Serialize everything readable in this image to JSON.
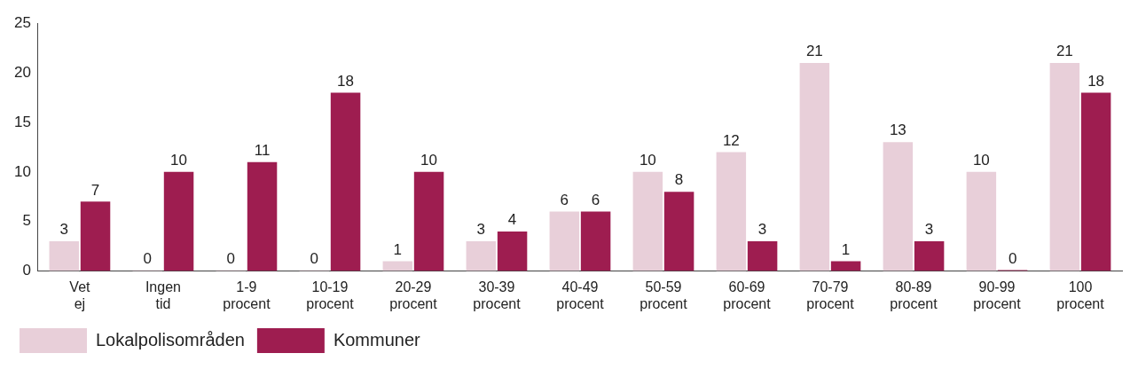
{
  "chart_data": {
    "type": "bar",
    "categories": [
      "Vet ej",
      "Ingen tid",
      "1-9 procent",
      "10-19 procent",
      "20-29 procent",
      "30-39 procent",
      "40-49 procent",
      "50-59 procent",
      "60-69 procent",
      "70-79 procent",
      "80-89 procent",
      "90-99 procent",
      "100 procent"
    ],
    "series": [
      {
        "name": "Lokalpolisområden",
        "color": "#e8cfd9",
        "values": [
          3,
          0,
          0,
          0,
          1,
          3,
          6,
          10,
          12,
          21,
          13,
          10,
          21
        ]
      },
      {
        "name": "Kommuner",
        "color": "#9e1d50",
        "values": [
          7,
          10,
          11,
          18,
          10,
          4,
          6,
          8,
          3,
          1,
          3,
          0,
          18
        ]
      }
    ],
    "ylim": [
      0,
      25
    ],
    "yticks": [
      0,
      5,
      10,
      15,
      20,
      25
    ],
    "grid": false,
    "legend": "bottom left",
    "data_labels": true
  }
}
